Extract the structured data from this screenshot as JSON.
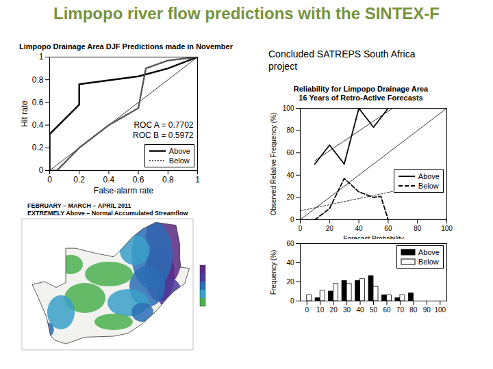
{
  "title": "Limpopo river flow predictions with the SINTEX-F",
  "note": "Concluded SATREPS South Africa project",
  "chart_data": [
    {
      "type": "line",
      "title": "Limpopo Drainage Area DJF Predictions made in November",
      "x_label": "False-alarm rate",
      "y_label": "Hit rate",
      "xlim": [
        0,
        1
      ],
      "ylim": [
        0,
        1
      ],
      "xticks": [
        0,
        0.2,
        0.4,
        0.6,
        0.8,
        1
      ],
      "yticks": [
        0,
        0.2,
        0.4,
        0.6,
        0.8,
        1
      ],
      "series": [
        {
          "name": "Above",
          "color": "#000000",
          "line_style": "solid",
          "x": [
            0,
            0,
            0.2,
            0.2,
            0.6,
            0.8,
            1
          ],
          "values": [
            0,
            0.32,
            0.58,
            0.76,
            0.83,
            0.9,
            1
          ]
        },
        {
          "name": "Below",
          "color": "#555555",
          "line_style": "dotted",
          "x": [
            0,
            0.05,
            0.2,
            0.4,
            0.6,
            0.65,
            0.8,
            1
          ],
          "values": [
            0,
            0,
            0.2,
            0.4,
            0.55,
            0.9,
            0.97,
            1
          ]
        }
      ],
      "reference_line": {
        "x": [
          0,
          1
        ],
        "values": [
          0,
          1
        ]
      },
      "annotations": [
        "ROC A = 0.7702",
        "ROC B = 0.5972"
      ],
      "legend": "lower right"
    },
    {
      "type": "line",
      "title": "Reliability for Limpopo Drainage Area",
      "subtitle": "16 Years of Retro-Active Forecasts",
      "x_label": "Forecast Probability",
      "y_label": "Observed Relative Frequency (%)",
      "xlim": [
        0,
        100
      ],
      "ylim": [
        0,
        100
      ],
      "xticks": [
        0,
        20,
        40,
        60,
        80,
        100
      ],
      "yticks": [
        0,
        20,
        40,
        60,
        80,
        100
      ],
      "series": [
        {
          "name": "Above",
          "color": "#000000",
          "line_style": "solid",
          "x": [
            10,
            20,
            30,
            40,
            50,
            60
          ],
          "values": [
            50,
            67,
            50,
            100,
            83,
            100
          ],
          "trend": {
            "x": [
              10,
              63
            ],
            "values": [
              53,
              100
            ]
          }
        },
        {
          "name": "Below",
          "color": "#000000",
          "line_style": "dashed",
          "x": [
            10,
            20,
            30,
            40,
            50,
            55,
            60
          ],
          "values": [
            0,
            10,
            37,
            25,
            20,
            21,
            0
          ],
          "trend": {
            "x": [
              0,
              80
            ],
            "values": [
              8,
              30
            ]
          }
        }
      ],
      "reference_line": {
        "x": [
          0,
          100
        ],
        "values": [
          0,
          100
        ]
      },
      "legend": "right"
    },
    {
      "type": "bar",
      "y_label": "Frequency (%)",
      "x": [
        0,
        10,
        20,
        30,
        40,
        50,
        60,
        70,
        80,
        90,
        100
      ],
      "xlim": [
        -5,
        105
      ],
      "ylim": [
        0,
        60
      ],
      "xticks": [
        0,
        10,
        20,
        30,
        40,
        50,
        60,
        70,
        80,
        90,
        100
      ],
      "yticks": [
        0,
        20,
        40,
        60
      ],
      "series": [
        {
          "name": "Above",
          "color": "#000000",
          "values": [
            0,
            3,
            10,
            21,
            21,
            26,
            6,
            3,
            8,
            0,
            0
          ]
        },
        {
          "name": "Below",
          "color": "#ffffff",
          "values": [
            6,
            11,
            18,
            18,
            23,
            15,
            6,
            6,
            0,
            0,
            0
          ]
        }
      ],
      "legend": "upper right"
    },
    {
      "type": "map",
      "title": "FEBRUARY – MARCH – APRIL 2011",
      "subtitle": "EXTREMELY Above – Normal Accumulated Streamflow"
    }
  ]
}
